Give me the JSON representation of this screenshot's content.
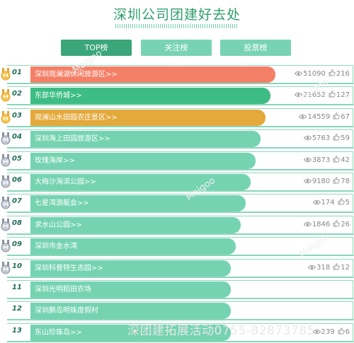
{
  "page": {
    "title": "深圳公司团建好去处"
  },
  "tabs": [
    {
      "label": "TOP榜",
      "active": true
    },
    {
      "label": "关注榜",
      "active": false
    },
    {
      "label": "投票榜",
      "active": false
    }
  ],
  "colors": {
    "accent": "#3aa679",
    "bar_default": "#75d3b2",
    "bar_first": "#f47f67",
    "bar_second": "#3dbd84",
    "bar_third": "#e3a93b"
  },
  "rows": [
    {
      "rank": "01",
      "name": "深圳观澜湖休闲旅游区>>",
      "views": "51090",
      "likes": "216",
      "medal": "gold-medal"
    },
    {
      "rank": "02",
      "name": "东部华侨城>>",
      "views": "21652",
      "likes": "127",
      "medal": "gold-medal"
    },
    {
      "rank": "03",
      "name": "观澜山水田园农庄景区>>",
      "views": "14559",
      "likes": "67",
      "medal": "gold-medal"
    },
    {
      "rank": "04",
      "name": "深圳海上田园旅游区>>",
      "views": "5763",
      "likes": "59",
      "medal": "silver-medal"
    },
    {
      "rank": "05",
      "name": "玫瑰海岸>>",
      "views": "3873",
      "likes": "42",
      "medal": "silver-medal"
    },
    {
      "rank": "06",
      "name": "大梅沙海滨公园>>",
      "views": "9180",
      "likes": "78",
      "medal": "silver-medal"
    },
    {
      "rank": "07",
      "name": "七星湾游艇会>>",
      "views": "174",
      "likes": "5",
      "medal": "silver-medal"
    },
    {
      "rank": "08",
      "name": "求水山公园>>",
      "views": "1846",
      "likes": "26",
      "medal": "silver-medal"
    },
    {
      "rank": "09",
      "name": "深圳市金水湾",
      "views": "",
      "likes": "",
      "medal": "silver-medal"
    },
    {
      "rank": "10",
      "name": "深圳科普特生态园>>",
      "views": "318",
      "likes": "12",
      "medal": "silver-medal"
    },
    {
      "rank": "11",
      "name": "深圳光明稻田农场",
      "views": "",
      "likes": "",
      "medal": ""
    },
    {
      "rank": "12",
      "name": "深圳鹏岛明珠度假村",
      "views": "",
      "likes": "",
      "medal": ""
    },
    {
      "rank": "13",
      "name": "东山珍珠岛>>",
      "views": "239",
      "likes": "6",
      "medal": ""
    }
  ],
  "watermark": {
    "text": "深团建拓展活动0755-82873785",
    "diag": "Maigoo"
  }
}
